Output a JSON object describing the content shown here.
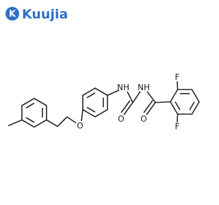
{
  "logo": {
    "icon": "K",
    "text": "Kuujia"
  },
  "atoms": [
    {
      "label": "F"
    },
    {
      "label": "F"
    },
    {
      "label": "NH"
    },
    {
      "label": "NH"
    },
    {
      "label": "O"
    },
    {
      "label": "O"
    },
    {
      "label": "O"
    }
  ]
}
